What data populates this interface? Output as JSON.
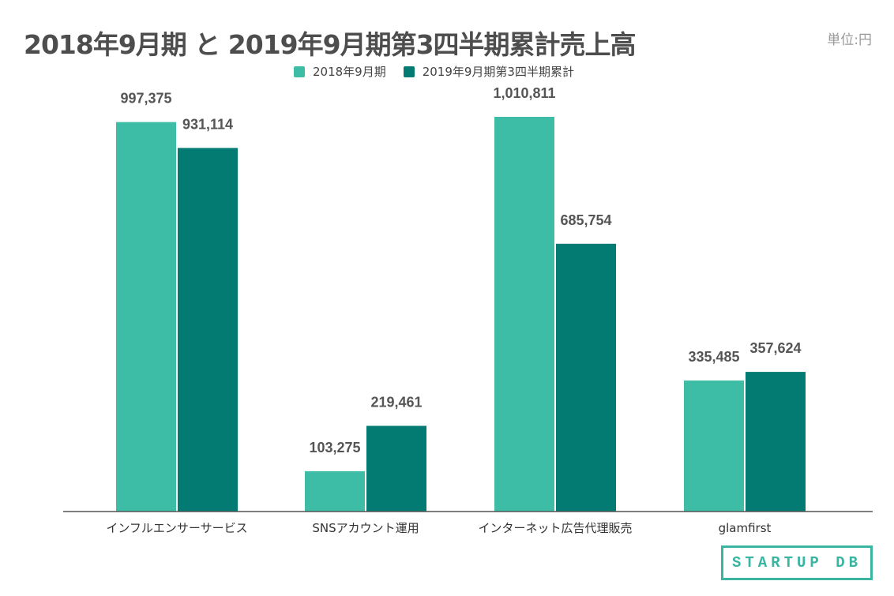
{
  "unit_label": "単位:円",
  "logo_text": "STARTUP DB",
  "colors": {
    "series1": "#3dbda5",
    "series2": "#037b72",
    "axis": "#555555",
    "label": "#555555"
  },
  "chart_data": {
    "type": "bar",
    "title": "2018年9月期 と 2019年9月期第3四半期累計売上高",
    "xlabel": "",
    "ylabel": "",
    "ylim": [
      0,
      1010811
    ],
    "grid": false,
    "legend_position": "top",
    "categories": [
      "インフルエンサーサービス",
      "SNSアカウント運用",
      "インターネット広告代理販売",
      "glamfirst"
    ],
    "series": [
      {
        "name": "2018年9月期",
        "values": [
          997375,
          103275,
          1010811,
          335485
        ],
        "labels": [
          "997,375",
          "103,275",
          "1,010,811",
          "335,485"
        ]
      },
      {
        "name": "2019年9月期第3四半期累計",
        "values": [
          931114,
          219461,
          685754,
          357624
        ],
        "labels": [
          "931,114",
          "219,461",
          "685,754",
          "357,624"
        ]
      }
    ]
  }
}
